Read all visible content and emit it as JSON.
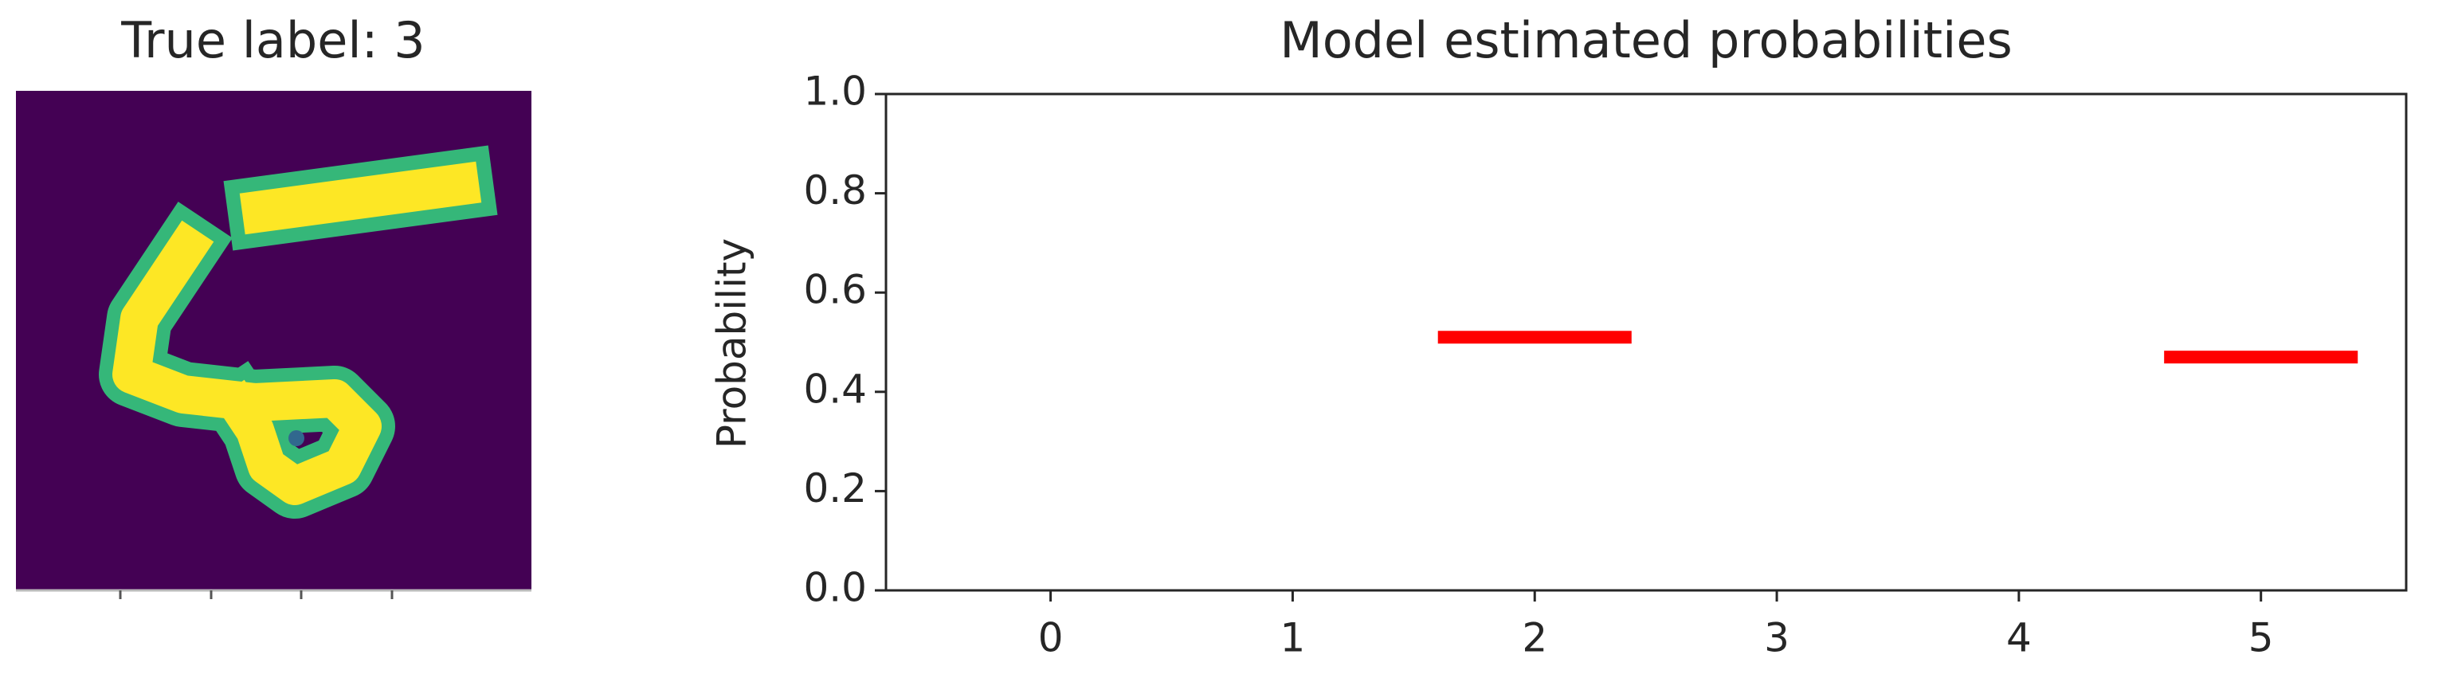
{
  "chart_data": [
    {
      "type": "image",
      "title": "True label: 3"
    },
    {
      "type": "bar",
      "title": "Model estimated probabilities",
      "ylabel": "Probability",
      "x": [
        2,
        5
      ],
      "values": [
        0.51,
        0.47
      ],
      "color": "#ff0000",
      "xlim": [
        -0.68,
        5.6
      ],
      "xticks": [
        0,
        1,
        2,
        3,
        4,
        5
      ],
      "ylim": [
        0,
        1
      ],
      "yticks": [
        {
          "value": 0,
          "label": "0.0"
        },
        {
          "value": 0.2,
          "label": "0.2"
        },
        {
          "value": 0.4,
          "label": "0.4"
        },
        {
          "value": 0.6,
          "label": "0.6"
        },
        {
          "value": 0.8,
          "label": "0.8"
        },
        {
          "value": 1,
          "label": "1.0"
        }
      ],
      "grid": false
    }
  ]
}
